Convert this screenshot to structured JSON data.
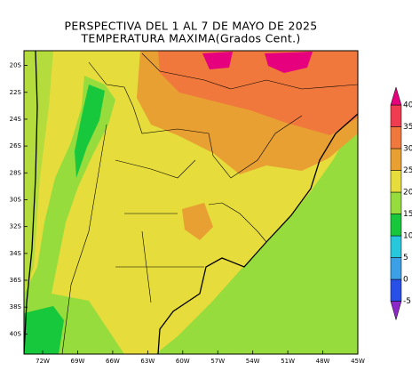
{
  "title": [
    "PERSPECTIVA DEL 1 AL 7 DE MAYO DE 2025",
    "TEMPERATURA MAXIMA(Grados Cent.)"
  ],
  "map": {
    "xlim": [
      -73.6,
      -45
    ],
    "ylim": [
      -41.5,
      -18.9
    ],
    "xticks": [
      {
        "value": -72,
        "label": "72W"
      },
      {
        "value": -69,
        "label": "69W"
      },
      {
        "value": -66,
        "label": "66W"
      },
      {
        "value": -63,
        "label": "63W"
      },
      {
        "value": -60,
        "label": "60W"
      },
      {
        "value": -57,
        "label": "57W"
      },
      {
        "value": -54,
        "label": "54W"
      },
      {
        "value": -51,
        "label": "51W"
      },
      {
        "value": -48,
        "label": "48W"
      },
      {
        "value": -45,
        "label": "45W"
      }
    ],
    "yticks": [
      {
        "value": -20,
        "label": "20S"
      },
      {
        "value": -22,
        "label": "22S"
      },
      {
        "value": -24,
        "label": "24S"
      },
      {
        "value": -26,
        "label": "26S"
      },
      {
        "value": -28,
        "label": "28S"
      },
      {
        "value": -30,
        "label": "30S"
      },
      {
        "value": -32,
        "label": "32S"
      },
      {
        "value": -34,
        "label": "34S"
      },
      {
        "value": -36,
        "label": "36S"
      },
      {
        "value": -38,
        "label": "38S"
      },
      {
        "value": -40,
        "label": "40S"
      }
    ]
  },
  "colorbar": {
    "levels": [
      -5,
      0,
      5,
      10,
      15,
      20,
      25,
      30,
      35,
      40
    ],
    "colors": [
      "#8c28c8",
      "#2850e6",
      "#3ca0e6",
      "#28c8dc",
      "#18c83c",
      "#96dc3c",
      "#e6dc3c",
      "#e8a033",
      "#f0783c",
      "#f03c50",
      "#e6007e"
    ]
  }
}
